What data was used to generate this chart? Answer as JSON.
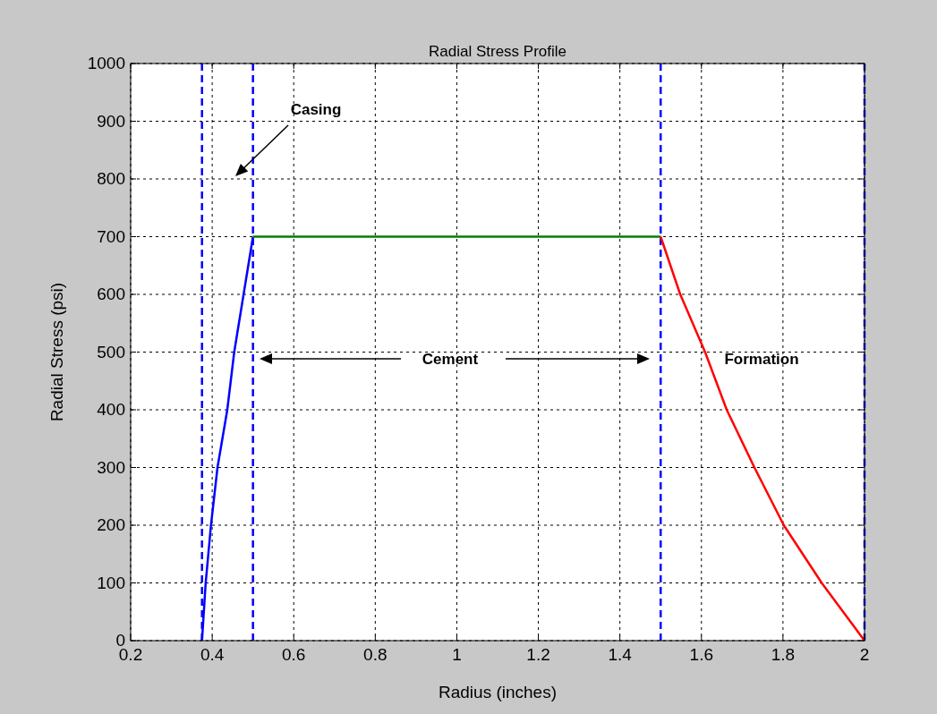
{
  "chart_data": {
    "type": "line",
    "title": "Radial Stress Profile",
    "xlabel": "Radius (inches)",
    "ylabel": "Radial Stress (psi)",
    "xlim": [
      0.2,
      2
    ],
    "xticks": [
      0.2,
      0.4,
      0.6,
      0.8,
      1,
      1.2,
      1.4,
      1.6,
      1.8,
      2
    ],
    "ylim": [
      0,
      1000
    ],
    "yticks": [
      0,
      100,
      200,
      300,
      400,
      500,
      600,
      700,
      800,
      900,
      1000
    ],
    "grid": true,
    "line_style": "solid",
    "marker": "none",
    "series": [
      {
        "color": "#0000ff",
        "x": [
          0.375,
          0.384,
          0.397,
          0.413,
          0.437,
          0.454,
          0.477,
          0.5
        ],
        "values": [
          0,
          100,
          200,
          300,
          400,
          500,
          600,
          700
        ]
      },
      {
        "color": "#008000",
        "x": [
          0.5,
          1.5
        ],
        "values": [
          700,
          700
        ]
      },
      {
        "color": "#ff0000",
        "x": [
          1.5,
          1.548,
          1.609,
          1.662,
          1.73,
          1.802,
          1.895,
          2
        ],
        "values": [
          700,
          600,
          500,
          400,
          300,
          200,
          100,
          0
        ]
      }
    ],
    "ref_lines": [
      {
        "axis": "x",
        "value": 0.375,
        "color": "#0000ff",
        "line_style": "dashed"
      },
      {
        "axis": "x",
        "value": 0.5,
        "color": "#0000ff",
        "line_style": "dashed"
      },
      {
        "axis": "x",
        "value": 1.5,
        "color": "#0000ff",
        "line_style": "dashed"
      },
      {
        "axis": "x",
        "value": 2,
        "color": "#0000ff",
        "line_style": "dashed"
      }
    ],
    "annotations": [
      "Casing",
      "Cement",
      "Formation"
    ]
  }
}
